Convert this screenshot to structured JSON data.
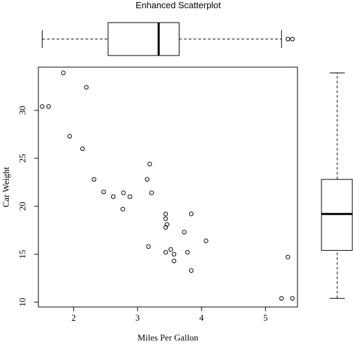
{
  "chart_data": {
    "type": "scatter",
    "title": "Enhanced Scatterplot",
    "xlabel": "Miles Per Gallon",
    "ylabel": "Car Weight",
    "xlim": [
      1.45,
      5.5
    ],
    "ylim": [
      9.5,
      34.5
    ],
    "xticks": [
      2,
      3,
      4,
      5
    ],
    "yticks": [
      10,
      15,
      20,
      25,
      30
    ],
    "grid": false,
    "points": [
      {
        "x": 1.51,
        "y": 30.4
      },
      {
        "x": 1.61,
        "y": 30.4
      },
      {
        "x": 1.84,
        "y": 33.9
      },
      {
        "x": 1.94,
        "y": 27.3
      },
      {
        "x": 2.14,
        "y": 26.0
      },
      {
        "x": 2.2,
        "y": 32.4
      },
      {
        "x": 2.32,
        "y": 22.8
      },
      {
        "x": 2.47,
        "y": 21.5
      },
      {
        "x": 2.62,
        "y": 21.0
      },
      {
        "x": 2.78,
        "y": 21.4
      },
      {
        "x": 2.77,
        "y": 19.7
      },
      {
        "x": 2.88,
        "y": 21.0
      },
      {
        "x": 3.15,
        "y": 22.8
      },
      {
        "x": 3.17,
        "y": 15.8
      },
      {
        "x": 3.19,
        "y": 24.4
      },
      {
        "x": 3.22,
        "y": 21.4
      },
      {
        "x": 3.44,
        "y": 19.2
      },
      {
        "x": 3.44,
        "y": 18.7
      },
      {
        "x": 3.44,
        "y": 17.8
      },
      {
        "x": 3.46,
        "y": 18.1
      },
      {
        "x": 3.44,
        "y": 15.2
      },
      {
        "x": 3.52,
        "y": 15.5
      },
      {
        "x": 3.57,
        "y": 15.0
      },
      {
        "x": 3.57,
        "y": 14.3
      },
      {
        "x": 3.73,
        "y": 17.3
      },
      {
        "x": 3.78,
        "y": 15.2
      },
      {
        "x": 3.84,
        "y": 19.2
      },
      {
        "x": 3.84,
        "y": 13.3
      },
      {
        "x": 4.07,
        "y": 16.4
      },
      {
        "x": 5.25,
        "y": 10.4
      },
      {
        "x": 5.35,
        "y": 14.7
      },
      {
        "x": 5.42,
        "y": 10.4
      }
    ],
    "x_boxplot": {
      "whisker_low": 1.51,
      "q1": 2.54,
      "median": 3.33,
      "q3": 3.65,
      "whisker_high": 5.25,
      "outliers": [
        5.35,
        5.42
      ]
    },
    "y_boxplot": {
      "whisker_low": 10.4,
      "q1": 15.4,
      "median": 19.2,
      "q3": 22.8,
      "whisker_high": 33.9,
      "outliers": []
    }
  }
}
